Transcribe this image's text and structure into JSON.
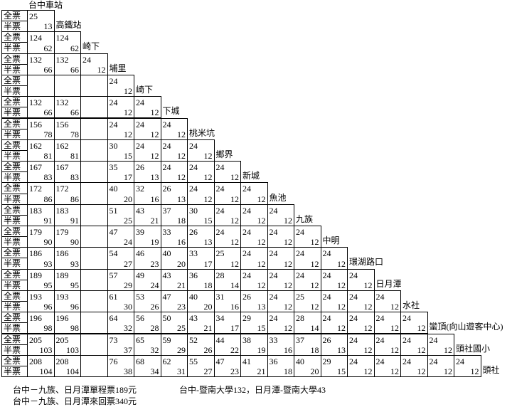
{
  "header": {
    "origin": "台中車站"
  },
  "labels": {
    "full": "全票",
    "half": "半票"
  },
  "rows": [
    {
      "station": "高鐵站",
      "full": [
        25
      ],
      "half": [
        13
      ]
    },
    {
      "station": "崎下",
      "full": [
        124,
        124
      ],
      "half": [
        62,
        62
      ]
    },
    {
      "station": "埔里",
      "full": [
        132,
        132,
        24
      ],
      "half": [
        66,
        66,
        12
      ]
    },
    {
      "station": "崎下",
      "full": [
        null,
        null,
        null,
        24
      ],
      "half": [
        null,
        null,
        null,
        12
      ]
    },
    {
      "station": "下城",
      "full": [
        132,
        132,
        null,
        24,
        24
      ],
      "half": [
        66,
        66,
        null,
        12,
        12
      ]
    },
    {
      "station": "桃米坑",
      "full": [
        156,
        156,
        null,
        24,
        24,
        24
      ],
      "half": [
        78,
        78,
        null,
        12,
        12,
        12
      ]
    },
    {
      "station": "鄉界",
      "full": [
        162,
        162,
        null,
        30,
        24,
        24,
        24
      ],
      "half": [
        81,
        81,
        null,
        15,
        12,
        12,
        12
      ]
    },
    {
      "station": "新城",
      "full": [
        167,
        167,
        null,
        35,
        26,
        24,
        24,
        24
      ],
      "half": [
        83,
        83,
        null,
        17,
        13,
        12,
        12,
        12
      ]
    },
    {
      "station": "魚池",
      "full": [
        172,
        172,
        null,
        40,
        32,
        26,
        24,
        24,
        24
      ],
      "half": [
        86,
        86,
        null,
        20,
        16,
        13,
        12,
        12,
        12
      ]
    },
    {
      "station": "九族",
      "full": [
        183,
        183,
        null,
        51,
        43,
        37,
        30,
        24,
        24,
        24
      ],
      "half": [
        91,
        91,
        null,
        25,
        21,
        18,
        15,
        12,
        12,
        12
      ]
    },
    {
      "station": "中明",
      "full": [
        179,
        179,
        null,
        47,
        39,
        33,
        26,
        24,
        24,
        24,
        24
      ],
      "half": [
        90,
        90,
        null,
        24,
        19,
        16,
        13,
        12,
        12,
        12,
        12
      ]
    },
    {
      "station": "環湖路口",
      "full": [
        186,
        186,
        null,
        54,
        46,
        40,
        33,
        25,
        24,
        24,
        24,
        24
      ],
      "half": [
        93,
        93,
        null,
        27,
        23,
        20,
        17,
        12,
        12,
        12,
        12,
        12
      ]
    },
    {
      "station": "日月潭",
      "full": [
        189,
        189,
        null,
        57,
        49,
        43,
        36,
        28,
        24,
        24,
        24,
        24,
        24
      ],
      "half": [
        95,
        95,
        null,
        29,
        24,
        21,
        18,
        14,
        12,
        12,
        12,
        12,
        12
      ]
    },
    {
      "station": "水社",
      "full": [
        193,
        193,
        null,
        61,
        53,
        47,
        40,
        31,
        26,
        24,
        25,
        24,
        24,
        24
      ],
      "half": [
        96,
        96,
        null,
        30,
        26,
        23,
        20,
        16,
        13,
        12,
        12,
        12,
        12,
        12
      ]
    },
    {
      "station": "蠻頂(向山遊客中心)",
      "full": [
        196,
        196,
        null,
        64,
        56,
        50,
        43,
        34,
        29,
        24,
        28,
        24,
        24,
        24,
        24
      ],
      "half": [
        98,
        98,
        null,
        32,
        28,
        25,
        21,
        17,
        15,
        12,
        14,
        12,
        12,
        12,
        12
      ]
    },
    {
      "station": "頭社國小",
      "full": [
        205,
        205,
        null,
        73,
        65,
        59,
        52,
        44,
        38,
        33,
        37,
        26,
        24,
        24,
        24,
        24
      ],
      "half": [
        103,
        103,
        null,
        37,
        32,
        29,
        26,
        22,
        19,
        16,
        18,
        13,
        12,
        12,
        12,
        12
      ]
    },
    {
      "station": "頭社",
      "full": [
        208,
        208,
        null,
        76,
        68,
        62,
        55,
        47,
        41,
        36,
        40,
        29,
        24,
        24,
        24,
        24,
        24
      ],
      "half": [
        104,
        104,
        null,
        38,
        34,
        31,
        27,
        23,
        21,
        18,
        20,
        15,
        12,
        12,
        12,
        12,
        12
      ]
    }
  ],
  "notes": [
    "台中－九族、日月潭單程票189元",
    "台中-暨南大學132，日月潭-暨南大學43",
    "台中－九族、日月潭來回票340元"
  ]
}
